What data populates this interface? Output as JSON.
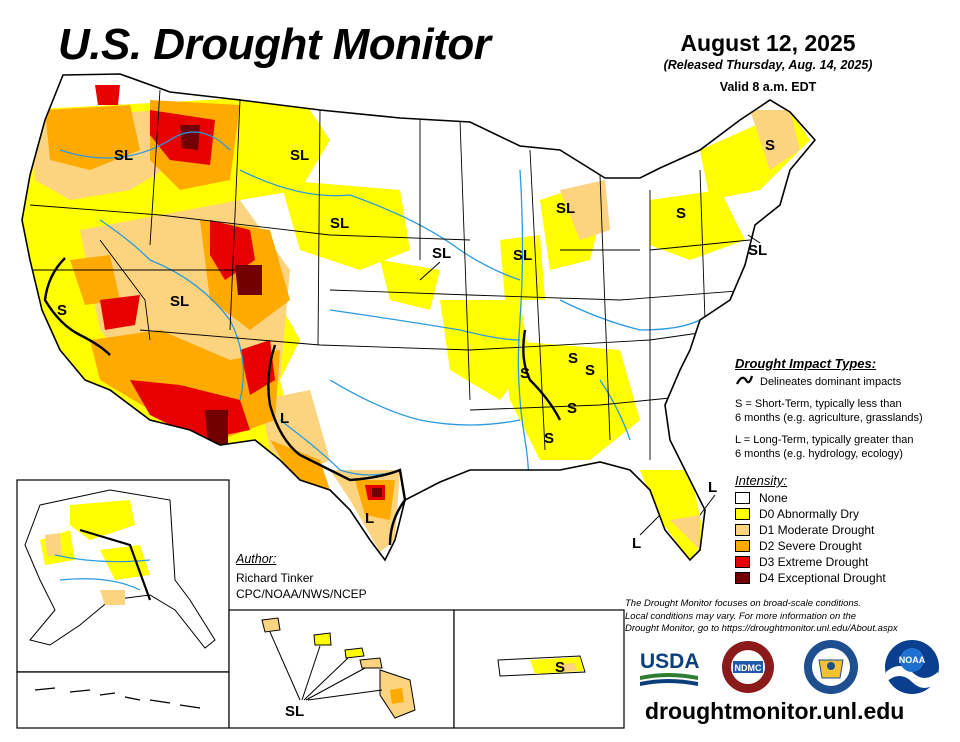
{
  "title": "U.S. Drought Monitor",
  "date": "August 12, 2025",
  "released": "(Released Thursday, Aug. 14, 2025)",
  "valid": "Valid 8 a.m. EDT",
  "map_labels": {
    "sl": "SL",
    "s": "S",
    "l": "L"
  },
  "impact_types": {
    "title": "Drought Impact Types:",
    "delineates": "Delineates dominant impacts",
    "s_line1": "S = Short-Term, typically less than",
    "s_line2": "6 months (e.g. agriculture, grasslands)",
    "l_line1": "L = Long-Term, typically greater than",
    "l_line2": "6 months (e.g. hydrology, ecology)"
  },
  "intensity": {
    "title": "Intensity:",
    "levels": [
      {
        "label": "None",
        "color": "#ffffff"
      },
      {
        "label": "D0 Abnormally Dry",
        "color": "#ffff00"
      },
      {
        "label": "D1 Moderate Drought",
        "color": "#fcd37f"
      },
      {
        "label": "D2 Severe Drought",
        "color": "#ffaa00"
      },
      {
        "label": "D3 Extreme Drought",
        "color": "#e60000"
      },
      {
        "label": "D4 Exceptional Drought",
        "color": "#730000"
      }
    ]
  },
  "author": {
    "title": "Author:",
    "name": "Richard Tinker",
    "org": "CPC/NOAA/NWS/NCEP"
  },
  "disclaimer": {
    "line1": "The Drought Monitor focuses on broad-scale conditions.",
    "line2": "Local conditions may vary. For more information on the",
    "line3": "Drought Monitor, go to https://droughtmonitor.unl.edu/About.aspx"
  },
  "logos": {
    "usda": "USDA",
    "ndmc": "NDMC",
    "noaa": "NOAA"
  },
  "url": "droughtmonitor.unl.edu",
  "colors": {
    "water": "#2a9ae0",
    "border": "#000000"
  }
}
